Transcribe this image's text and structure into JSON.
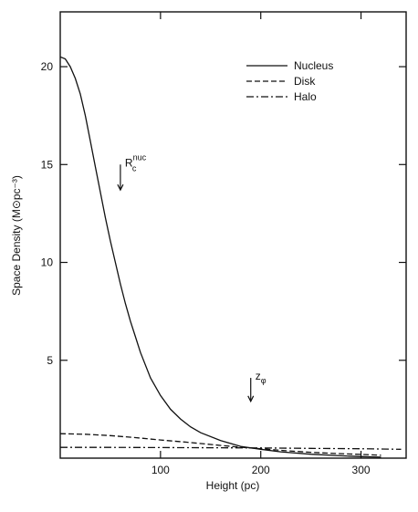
{
  "chart_data": {
    "type": "line",
    "title": "",
    "xlabel": "Height (pc)",
    "ylabel": "Space Density (M⊙pc⁻³)",
    "xlim": [
      0,
      345
    ],
    "ylim": [
      0,
      22.8
    ],
    "xticks": [
      100,
      200,
      300
    ],
    "yticks": [
      5,
      10,
      15,
      20
    ],
    "legend_position": "top-right",
    "grid": false,
    "series": [
      {
        "name": "Nucleus",
        "style": "solid",
        "x": [
          0,
          5,
          10,
          15,
          20,
          25,
          30,
          35,
          40,
          45,
          50,
          55,
          60,
          65,
          70,
          75,
          80,
          90,
          100,
          110,
          120,
          130,
          140,
          160,
          180,
          200,
          220,
          250,
          280,
          300,
          320
        ],
        "y": [
          20.5,
          20.4,
          20.0,
          19.4,
          18.6,
          17.5,
          16.2,
          14.9,
          13.6,
          12.3,
          11.1,
          10.0,
          8.9,
          7.9,
          7.0,
          6.2,
          5.4,
          4.1,
          3.2,
          2.5,
          2.0,
          1.6,
          1.3,
          0.9,
          0.6,
          0.45,
          0.32,
          0.2,
          0.12,
          0.08,
          0.05
        ]
      },
      {
        "name": "Disk",
        "style": "dashed",
        "x": [
          0,
          25,
          50,
          75,
          100,
          125,
          150,
          175,
          200,
          225,
          250,
          275,
          300,
          320
        ],
        "y": [
          1.25,
          1.22,
          1.15,
          1.05,
          0.93,
          0.82,
          0.7,
          0.58,
          0.48,
          0.38,
          0.3,
          0.24,
          0.19,
          0.15
        ]
      },
      {
        "name": "Halo",
        "style": "dashdot",
        "x": [
          0,
          50,
          100,
          150,
          200,
          250,
          300,
          340
        ],
        "y": [
          0.55,
          0.55,
          0.54,
          0.53,
          0.52,
          0.5,
          0.48,
          0.45
        ]
      }
    ],
    "annotations": [
      {
        "id": "rc",
        "base": "R",
        "sub": "c",
        "sup": "nuc",
        "x": 60,
        "y_from": 15.0,
        "y_to": 13.7
      },
      {
        "id": "zphi",
        "base": "z",
        "sub": "φ",
        "sup": "",
        "x": 190,
        "y_from": 4.1,
        "y_to": 2.9
      }
    ]
  }
}
